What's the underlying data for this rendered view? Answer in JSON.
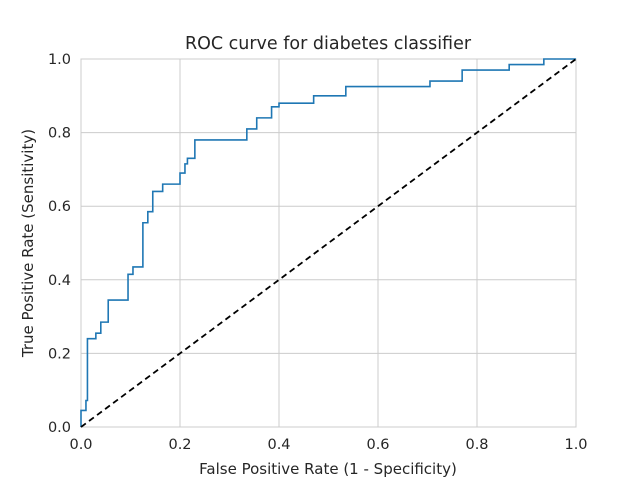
{
  "chart_data": {
    "type": "line",
    "title": "ROC curve for diabetes classifier",
    "xlabel": "False Positive Rate (1 - Specificity)",
    "ylabel": "True Positive Rate (Sensitivity)",
    "xlim": [
      0.0,
      1.0
    ],
    "ylim": [
      0.0,
      1.0
    ],
    "xticks": [
      "0.0",
      "0.2",
      "0.4",
      "0.6",
      "0.8",
      "1.0"
    ],
    "yticks": [
      "0.0",
      "0.2",
      "0.4",
      "0.6",
      "0.8",
      "1.0"
    ],
    "grid": true,
    "series": [
      {
        "color": "#1f77b4",
        "style": "step",
        "x": [
          0.0,
          0.0,
          0.01,
          0.01,
          0.013,
          0.013,
          0.03,
          0.03,
          0.04,
          0.04,
          0.055,
          0.055,
          0.095,
          0.095,
          0.105,
          0.105,
          0.125,
          0.125,
          0.135,
          0.135,
          0.145,
          0.145,
          0.165,
          0.165,
          0.2,
          0.2,
          0.21,
          0.21,
          0.215,
          0.215,
          0.23,
          0.23,
          0.335,
          0.335,
          0.355,
          0.355,
          0.385,
          0.385,
          0.4,
          0.4,
          0.47,
          0.47,
          0.535,
          0.535,
          0.705,
          0.705,
          0.77,
          0.77,
          0.865,
          0.865,
          0.935,
          0.935,
          1.0
        ],
        "y": [
          0.0,
          0.045,
          0.045,
          0.072,
          0.072,
          0.24,
          0.24,
          0.255,
          0.255,
          0.285,
          0.285,
          0.345,
          0.345,
          0.415,
          0.415,
          0.435,
          0.435,
          0.555,
          0.555,
          0.585,
          0.585,
          0.64,
          0.64,
          0.66,
          0.66,
          0.69,
          0.69,
          0.715,
          0.715,
          0.73,
          0.73,
          0.78,
          0.78,
          0.81,
          0.81,
          0.84,
          0.84,
          0.87,
          0.87,
          0.88,
          0.88,
          0.9,
          0.9,
          0.925,
          0.925,
          0.94,
          0.94,
          0.97,
          0.97,
          0.985,
          0.985,
          1.0,
          1.0
        ]
      },
      {
        "color": "#000000",
        "style": "dashed",
        "x": [
          0.0,
          1.0
        ],
        "y": [
          0.0,
          1.0
        ]
      }
    ]
  }
}
